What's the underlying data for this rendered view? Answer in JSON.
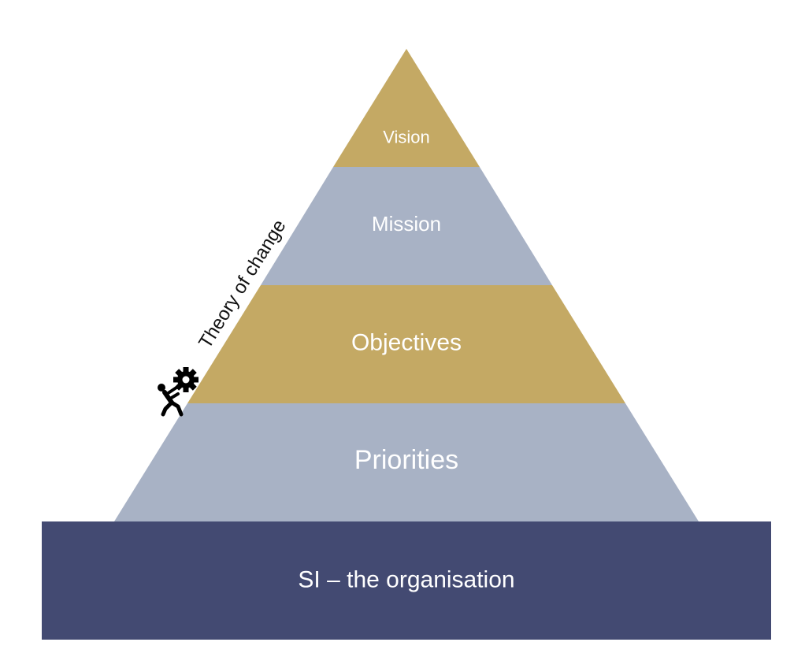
{
  "colors": {
    "gold": "#c4a964",
    "blue_grey": "#a8b2c5",
    "navy": "#434a72",
    "label_text": "#ffffff",
    "side_text": "#111111"
  },
  "pyramid": {
    "layers": [
      {
        "label": "Vision",
        "color": "#c4a964"
      },
      {
        "label": "Mission",
        "color": "#a8b2c5"
      },
      {
        "label": "Objectives",
        "color": "#c4a964"
      },
      {
        "label": "Priorities",
        "color": "#a8b2c5"
      }
    ]
  },
  "base": {
    "label": "SI – the organisation",
    "color": "#434a72"
  },
  "side_annotation": {
    "text": "Theory of change",
    "icon": "person-pushing-gear-icon"
  }
}
